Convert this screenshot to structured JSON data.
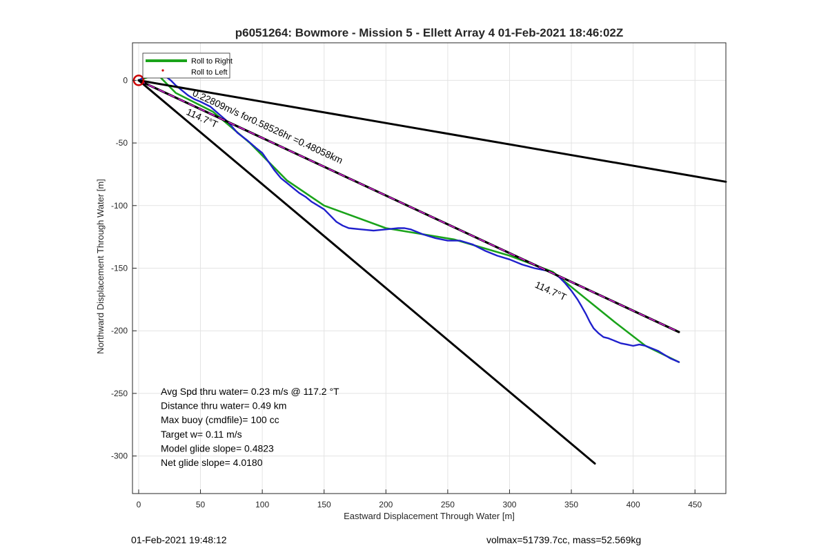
{
  "chart_data": {
    "type": "line",
    "title": "p6051264: Bowmore - Mission 5 - Ellett Array 4 01-Feb-2021 18:46:02Z",
    "xlabel": "Eastward Displacement Through Water [m]",
    "ylabel": "Northward Displacement Through Water [m]",
    "xlim": [
      -5,
      475
    ],
    "ylim": [
      -330,
      30
    ],
    "xticks": [
      0,
      50,
      100,
      150,
      200,
      250,
      300,
      350,
      400,
      450
    ],
    "yticks": [
      0,
      -50,
      -100,
      -150,
      -200,
      -250,
      -300
    ],
    "grid": true,
    "legend_position": "top-left",
    "legend": [
      {
        "name": "Roll to Right",
        "color": "#1aa31a",
        "style": "line"
      },
      {
        "name": "Roll to Left",
        "color": "#cc0000",
        "style": "dot"
      }
    ],
    "series": [
      {
        "name": "Roll to Right",
        "color": "#1aa31a",
        "x": [
          0,
          15,
          30,
          60,
          90,
          120,
          150,
          200,
          255,
          300,
          335,
          360,
          385,
          410,
          437
        ],
        "y": [
          0,
          5,
          -10,
          -25,
          -50,
          -80,
          -100,
          -118,
          -127,
          -140,
          -153,
          -173,
          -193,
          -212,
          -225
        ]
      },
      {
        "color": "#1f1fcc",
        "x": [
          0,
          5,
          10,
          14,
          18,
          22,
          26,
          30,
          35,
          40,
          45,
          50,
          58,
          65,
          72,
          80,
          88,
          95,
          100,
          105,
          110,
          115,
          120,
          125,
          130,
          135,
          140,
          145,
          150,
          155,
          160,
          165,
          170,
          180,
          190,
          200,
          210,
          215,
          220,
          230,
          240,
          250,
          260,
          270,
          280,
          290,
          300,
          310,
          320,
          330,
          335,
          340,
          345,
          350,
          355,
          358,
          362,
          365,
          368,
          372,
          376,
          380,
          385,
          390,
          395,
          400,
          405,
          410,
          420,
          430,
          437
        ],
        "y": [
          0,
          3,
          5,
          6,
          5,
          3,
          0,
          -4,
          -8,
          -12,
          -15,
          -17,
          -21,
          -27,
          -33,
          -42,
          -48,
          -54,
          -58,
          -65,
          -72,
          -78,
          -82,
          -86,
          -90,
          -93,
          -97,
          -100,
          -103,
          -108,
          -113,
          -116,
          -118,
          -119,
          -120,
          -119,
          -118,
          -118,
          -119,
          -123,
          -126,
          -128,
          -128,
          -131,
          -136,
          -140,
          -143,
          -147,
          -150,
          -152,
          -154,
          -157,
          -162,
          -168,
          -175,
          -180,
          -187,
          -193,
          -198,
          -202,
          -205,
          -206,
          -208,
          -210,
          -211,
          -212,
          -211,
          -212,
          -216,
          -222,
          -225
        ]
      },
      {
        "color": "#000000",
        "x": [
          0,
          437
        ],
        "y": [
          0,
          -201
        ]
      },
      {
        "color": "#dd22dd",
        "x": [
          0,
          437
        ],
        "y": [
          0,
          -201
        ]
      },
      {
        "color": "#000000",
        "x": [
          0,
          475
        ],
        "y": [
          0,
          -81
        ]
      },
      {
        "color": "#000000",
        "x": [
          0,
          369
        ],
        "y": [
          0,
          -306
        ]
      }
    ],
    "start_marker": {
      "x": 0,
      "y": 0,
      "color": "#cc0000"
    },
    "roll_left_points": [
      {
        "x": 24,
        "y": 6,
        "color": "#cc0000"
      }
    ],
    "annotations": [
      {
        "text": "0.22809m/s for0.58526hr =0.48058km",
        "x": 43,
        "y": -12,
        "rotate": 24.7
      },
      {
        "text": "114.7°T",
        "x": 38,
        "y": -27,
        "rotate": 24.7
      },
      {
        "text": "114.7°T",
        "x": 320,
        "y": -165,
        "rotate": 24.7
      }
    ],
    "stats": [
      "Avg Spd thru water=  0.23 m/s @ 117.2 °T",
      "Distance thru water=  0.49 km",
      "Max buoy (cmdfile)= 100 cc",
      "Target w= 0.11 m/s",
      "Model glide slope= 0.4823",
      "Net glide slope= 4.0180"
    ]
  },
  "footer": {
    "left": "01-Feb-2021 19:48:12",
    "right": "volmax=51739.7cc, mass=52.569kg"
  }
}
